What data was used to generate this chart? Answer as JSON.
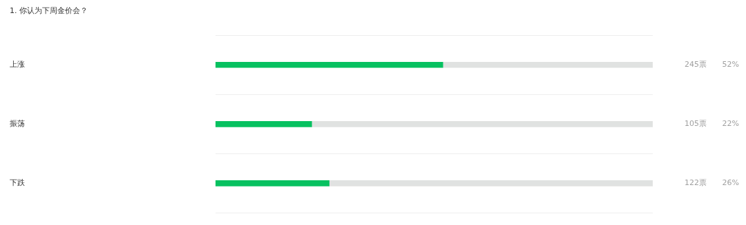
{
  "chart_data": {
    "type": "bar",
    "orientation": "horizontal",
    "stacked": true,
    "title": "1. 你认为下周金价会？",
    "categories": [
      "上涨",
      "振荡",
      "下跌"
    ],
    "series": [
      {
        "color": "#07c160",
        "values": [
          52,
          22,
          26
        ],
        "value_labels": [
          "52%",
          "22%",
          "26%"
        ]
      },
      {
        "color": "#e0e2e1",
        "values": [
          48,
          78,
          74
        ]
      }
    ],
    "xlim": [
      0,
      100
    ],
    "grid": "y",
    "tick_labels": "y",
    "annotations": [
      "245票",
      "105票",
      "122票"
    ]
  }
}
